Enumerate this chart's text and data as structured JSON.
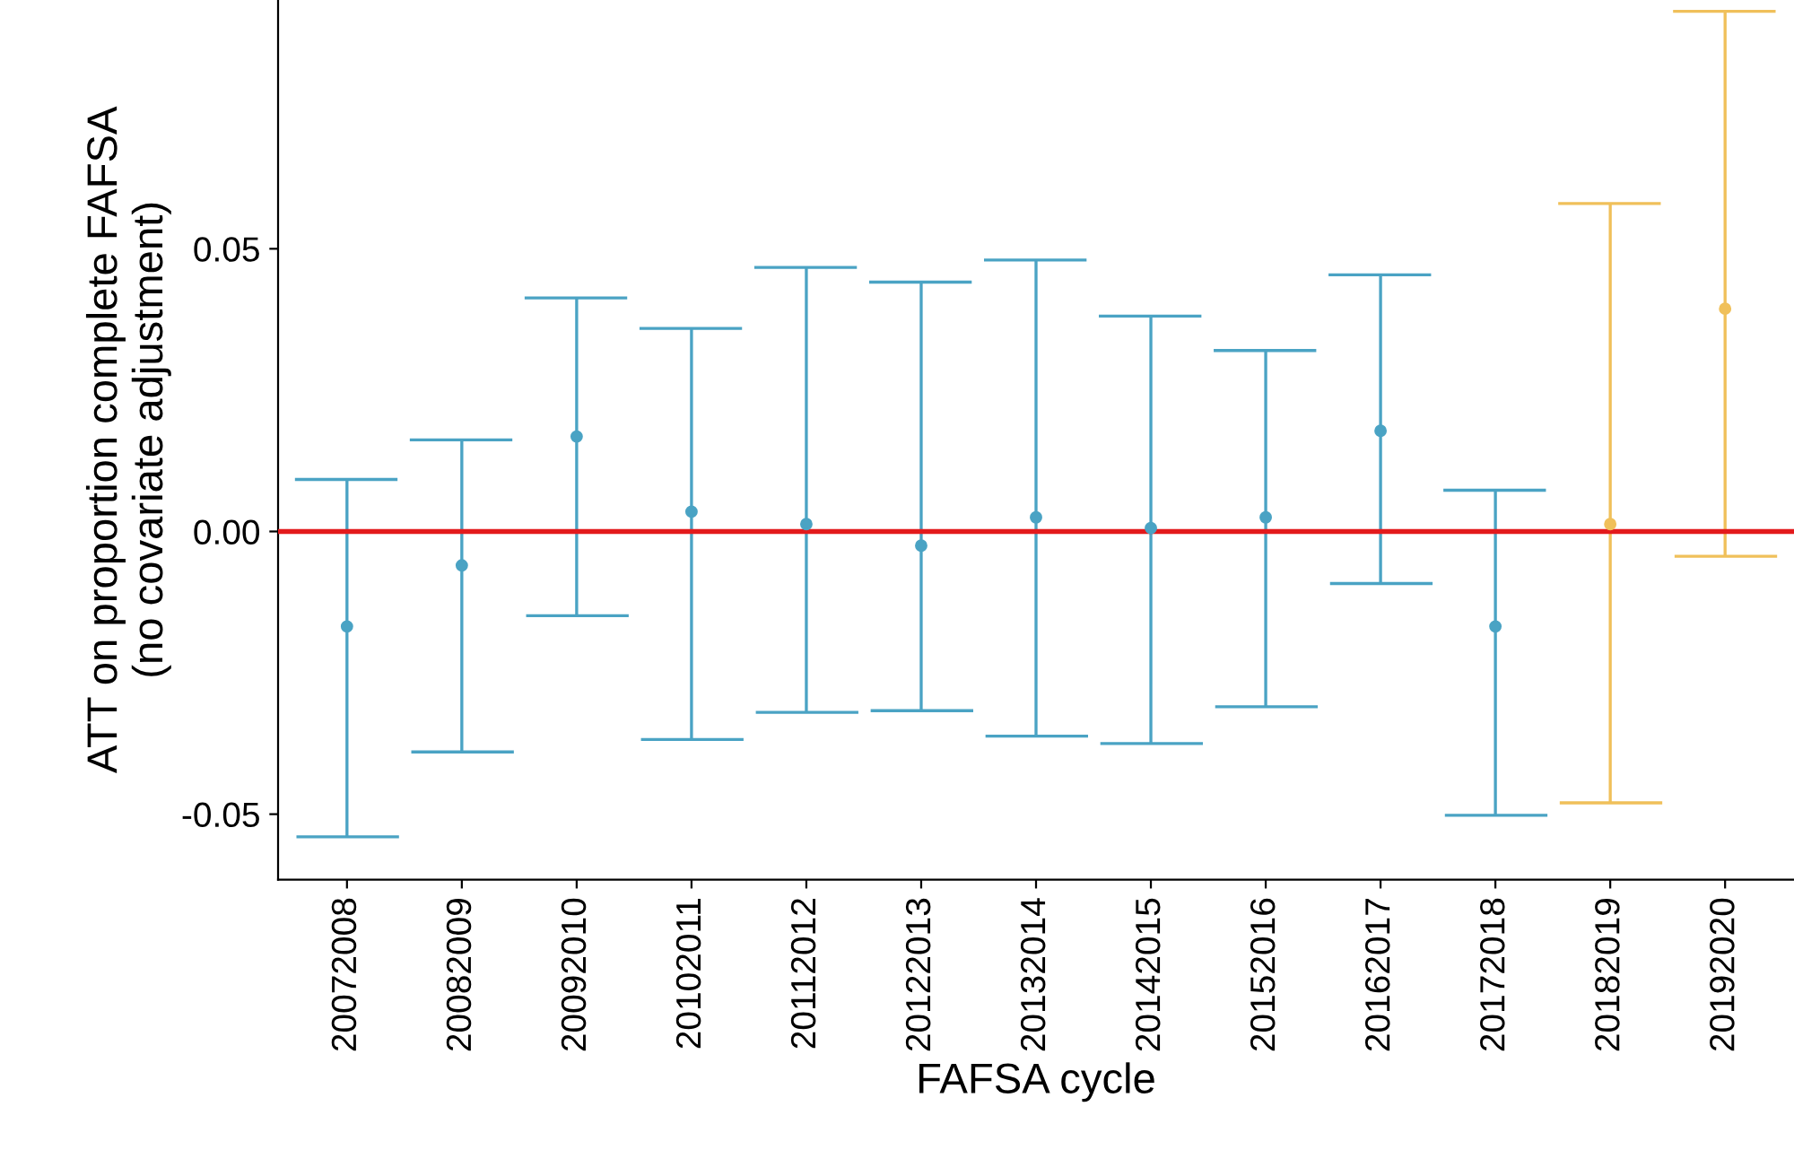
{
  "chart_data": {
    "type": "scatter",
    "xlabel": "FAFSA cycle",
    "ylabel": "ATT on proportion complete FAFSA\n(no covariate adjustment)",
    "categories": [
      "20072008",
      "20082009",
      "20092010",
      "20102011",
      "20112012",
      "20122013",
      "20132014",
      "20142015",
      "20152016",
      "20162017",
      "20172018",
      "20182019",
      "20192020"
    ],
    "values": [
      -0.0168,
      -0.006,
      0.0168,
      0.0035,
      0.0013,
      -0.0025,
      0.0025,
      0.0006,
      0.0025,
      0.0178,
      -0.0168,
      0.0013,
      0.0394
    ],
    "errors": [
      [
        -0.054,
        0.0092
      ],
      [
        -0.039,
        0.0162
      ],
      [
        -0.0149,
        0.0413
      ],
      [
        -0.0368,
        0.0359
      ],
      [
        -0.032,
        0.0467
      ],
      [
        -0.0317,
        0.0441
      ],
      [
        -0.0362,
        0.048
      ],
      [
        -0.0375,
        0.0381
      ],
      [
        -0.031,
        0.032
      ],
      [
        -0.0092,
        0.0454
      ],
      [
        -0.0502,
        0.0073
      ],
      [
        -0.048,
        0.058
      ],
      [
        -0.0044,
        0.092
      ]
    ],
    "colors": [
      "#4aa3c4",
      "#4aa3c4",
      "#4aa3c4",
      "#4aa3c4",
      "#4aa3c4",
      "#4aa3c4",
      "#4aa3c4",
      "#4aa3c4",
      "#4aa3c4",
      "#4aa3c4",
      "#4aa3c4",
      "#f0c05a",
      "#f0c05a"
    ],
    "marker": "circle",
    "ylim": [
      -0.0616,
      0.094
    ],
    "yticks": [
      {
        "value": -0.05,
        "label": "-0.05"
      },
      {
        "value": 0.0,
        "label": "0.00"
      },
      {
        "value": 0.05,
        "label": "0.05"
      }
    ],
    "ref_lines": [
      {
        "axis": "y",
        "value": 0,
        "color": "#e31a1c"
      }
    ],
    "grid": false,
    "legend": false
  }
}
